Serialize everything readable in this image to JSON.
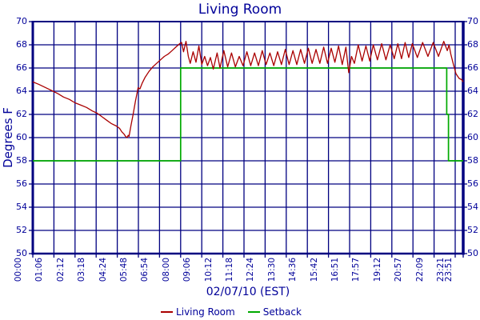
{
  "colors": {
    "grid": "#000080",
    "text": "#000099",
    "living_room": "#aa0000",
    "setback": "#00aa00",
    "background": "#ffffff"
  },
  "chart_data": {
    "type": "line",
    "title": "Living Room",
    "xlabel": "02/07/10 (EST)",
    "ylabel": "Degrees F",
    "ylim": [
      50,
      70
    ],
    "grid": "on",
    "legend_position": "bottom-center",
    "x_unit": "hours",
    "x_tick_labels": [
      "00:00",
      "01:06",
      "02:12",
      "03:18",
      "04:24",
      "05:48",
      "06:54",
      "08:00",
      "09:06",
      "10:12",
      "11:18",
      "12:24",
      "13:30",
      "14:36",
      "15:42",
      "16:51",
      "17:57",
      "19:12",
      "20:57",
      "22:09",
      "23:21",
      "23:51"
    ],
    "x_tick_hours": [
      0,
      1.1,
      2.2,
      3.3,
      4.4,
      5.8,
      6.9,
      8.0,
      9.1,
      10.2,
      11.3,
      12.4,
      13.5,
      14.6,
      15.7,
      16.85,
      17.95,
      19.2,
      20.95,
      22.15,
      23.35,
      23.85
    ],
    "y_ticks": [
      70,
      68,
      66,
      64,
      62,
      60,
      58,
      56,
      54,
      52,
      50
    ],
    "series": [
      {
        "name": "Living Room",
        "color": "#aa0000",
        "points": [
          [
            0.0,
            64.8
          ],
          [
            0.3,
            64.6
          ],
          [
            0.55,
            64.4
          ],
          [
            0.8,
            64.2
          ],
          [
            1.05,
            64.0
          ],
          [
            1.3,
            63.8
          ],
          [
            1.6,
            63.5
          ],
          [
            1.9,
            63.3
          ],
          [
            2.2,
            63.0
          ],
          [
            2.5,
            62.8
          ],
          [
            2.8,
            62.6
          ],
          [
            3.1,
            62.3
          ],
          [
            3.35,
            62.1
          ],
          [
            3.6,
            61.8
          ],
          [
            3.85,
            61.5
          ],
          [
            4.1,
            61.2
          ],
          [
            4.35,
            61.0
          ],
          [
            4.55,
            60.8
          ],
          [
            4.7,
            60.5
          ],
          [
            4.85,
            60.3
          ],
          [
            4.95,
            60.1
          ],
          [
            5.05,
            60.0
          ],
          [
            5.12,
            60.2
          ],
          [
            5.18,
            60.1
          ],
          [
            5.3,
            61.0
          ],
          [
            5.45,
            62.0
          ],
          [
            5.6,
            63.1
          ],
          [
            5.72,
            63.9
          ],
          [
            5.78,
            64.3
          ],
          [
            5.88,
            64.2
          ],
          [
            6.0,
            64.7
          ],
          [
            6.15,
            65.2
          ],
          [
            6.35,
            65.7
          ],
          [
            6.55,
            66.1
          ],
          [
            6.75,
            66.4
          ],
          [
            6.95,
            66.7
          ],
          [
            7.15,
            67.0
          ],
          [
            7.35,
            67.2
          ],
          [
            7.55,
            67.5
          ],
          [
            7.75,
            67.8
          ],
          [
            7.95,
            68.1
          ],
          [
            8.05,
            68.2
          ],
          [
            8.15,
            67.4
          ],
          [
            8.28,
            68.3
          ],
          [
            8.4,
            67.0
          ],
          [
            8.5,
            66.4
          ],
          [
            8.65,
            67.4
          ],
          [
            8.8,
            66.5
          ],
          [
            8.95,
            67.9
          ],
          [
            9.1,
            66.3
          ],
          [
            9.25,
            67.0
          ],
          [
            9.4,
            66.2
          ],
          [
            9.55,
            66.9
          ],
          [
            9.7,
            65.9
          ],
          [
            9.9,
            67.3
          ],
          [
            10.05,
            66.0
          ],
          [
            10.25,
            67.5
          ],
          [
            10.45,
            66.1
          ],
          [
            10.65,
            67.3
          ],
          [
            10.85,
            66.1
          ],
          [
            11.05,
            67.0
          ],
          [
            11.25,
            66.2
          ],
          [
            11.45,
            67.4
          ],
          [
            11.65,
            66.2
          ],
          [
            11.85,
            67.3
          ],
          [
            12.05,
            66.2
          ],
          [
            12.25,
            67.5
          ],
          [
            12.45,
            66.3
          ],
          [
            12.65,
            67.3
          ],
          [
            12.85,
            66.2
          ],
          [
            13.05,
            67.4
          ],
          [
            13.25,
            66.3
          ],
          [
            13.45,
            67.6
          ],
          [
            13.65,
            66.3
          ],
          [
            13.85,
            67.5
          ],
          [
            14.05,
            66.3
          ],
          [
            14.25,
            67.6
          ],
          [
            14.45,
            66.4
          ],
          [
            14.65,
            67.7
          ],
          [
            14.85,
            66.4
          ],
          [
            15.05,
            67.6
          ],
          [
            15.25,
            66.4
          ],
          [
            15.45,
            67.8
          ],
          [
            15.65,
            66.4
          ],
          [
            15.85,
            67.7
          ],
          [
            16.05,
            66.5
          ],
          [
            16.25,
            67.9
          ],
          [
            16.45,
            66.3
          ],
          [
            16.65,
            67.8
          ],
          [
            16.8,
            65.6
          ],
          [
            16.95,
            67.0
          ],
          [
            17.1,
            66.4
          ],
          [
            17.3,
            68.0
          ],
          [
            17.5,
            66.6
          ],
          [
            17.7,
            67.9
          ],
          [
            17.9,
            66.6
          ],
          [
            18.1,
            68.0
          ],
          [
            18.35,
            66.7
          ],
          [
            18.6,
            68.1
          ],
          [
            18.85,
            66.7
          ],
          [
            19.1,
            68.0
          ],
          [
            19.4,
            66.8
          ],
          [
            19.7,
            68.1
          ],
          [
            20.0,
            66.8
          ],
          [
            20.3,
            68.2
          ],
          [
            20.6,
            66.9
          ],
          [
            20.9,
            68.1
          ],
          [
            21.2,
            66.9
          ],
          [
            21.5,
            68.2
          ],
          [
            21.8,
            67.0
          ],
          [
            22.1,
            68.2
          ],
          [
            22.4,
            67.0
          ],
          [
            22.7,
            68.3
          ],
          [
            22.9,
            67.5
          ],
          [
            23.0,
            68.0
          ],
          [
            23.1,
            67.2
          ],
          [
            23.25,
            66.3
          ],
          [
            23.4,
            65.5
          ],
          [
            23.6,
            65.1
          ],
          [
            23.75,
            65.0
          ],
          [
            23.85,
            64.8
          ]
        ]
      },
      {
        "name": "Setback",
        "color": "#00aa00",
        "points": [
          [
            0.0,
            58
          ],
          [
            8.0,
            58
          ],
          [
            8.0,
            66
          ],
          [
            22.87,
            66
          ],
          [
            22.87,
            62
          ],
          [
            22.97,
            62
          ],
          [
            22.97,
            58
          ],
          [
            23.85,
            58
          ]
        ]
      }
    ]
  }
}
